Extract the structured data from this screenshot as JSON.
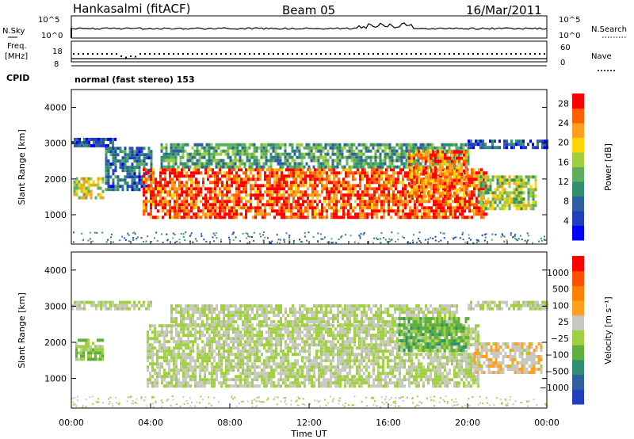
{
  "header": {
    "station": "Hankasalmi (fitACF)",
    "beam": "Beam 05",
    "date": "16/Mar/2011"
  },
  "status_panels": {
    "nsky_label": "N.Sky",
    "nsky_ticks": [
      "10^5",
      "10^0"
    ],
    "nsearch_label": "N.Search",
    "nsearch_ticks": [
      "10^5",
      "10^0"
    ],
    "freq_label_line1": "Freq.",
    "freq_label_line2": "[MHz]",
    "freq_ticks": [
      "18",
      "8"
    ],
    "nave_label": "Nave",
    "nave_ticks": [
      "60",
      "0"
    ],
    "cpid_label": "CPID",
    "cpid_text": "normal (fast stereo) 153"
  },
  "chart_data": [
    {
      "type": "heatmap",
      "name": "power",
      "title": "",
      "xlabel": "",
      "ylabel": "Slant Range [km]",
      "x_ticks": [
        "00:00",
        "04:00",
        "08:00",
        "12:00",
        "16:00",
        "20:00",
        "00:00"
      ],
      "x_range_hours": [
        0,
        24
      ],
      "y_ticks": [
        1000,
        2000,
        3000,
        4000
      ],
      "y_range_km": [
        180,
        4500
      ],
      "colorbar": {
        "label": "Power [dB]",
        "ticks": [
          "4",
          "8",
          "12",
          "16",
          "20",
          "24",
          "28"
        ],
        "range": [
          0,
          30
        ],
        "colors": [
          "#0000ff",
          "#1f3fbf",
          "#2e5f9f",
          "#2f8f6f",
          "#5fae5f",
          "#9fcf3f",
          "#ffd700",
          "#ff9f1f",
          "#ff5f00",
          "#ff0000"
        ]
      },
      "regions": [
        {
          "t0": 0.0,
          "t1": 2.2,
          "r_low": 2900,
          "r_high": 3150,
          "power": 6
        },
        {
          "t0": 0.1,
          "t1": 1.6,
          "r_low": 1500,
          "r_high": 2050,
          "power": 18
        },
        {
          "t0": 1.7,
          "t1": 4.0,
          "r_low": 1700,
          "r_high": 2900,
          "power": 8
        },
        {
          "t0": 3.6,
          "t1": 21.0,
          "r_low": 900,
          "r_high": 2300,
          "power": 26
        },
        {
          "t0": 4.5,
          "t1": 20.0,
          "r_low": 2300,
          "r_high": 3000,
          "power": 12
        },
        {
          "t0": 17.0,
          "t1": 20.0,
          "r_low": 1500,
          "r_high": 2800,
          "power": 24
        },
        {
          "t0": 20.5,
          "t1": 23.5,
          "r_low": 1200,
          "r_high": 2100,
          "power": 16
        },
        {
          "t0": 20.0,
          "t1": 24.0,
          "r_low": 2900,
          "r_high": 3100,
          "power": 6
        }
      ]
    },
    {
      "type": "heatmap",
      "name": "velocity",
      "title": "",
      "xlabel": "Time UT",
      "ylabel": "Slant Range [km]",
      "x_ticks": [
        "00:00",
        "04:00",
        "08:00",
        "12:00",
        "16:00",
        "20:00",
        "00:00"
      ],
      "x_range_hours": [
        0,
        24
      ],
      "y_ticks": [
        1000,
        2000,
        3000,
        4000
      ],
      "y_range_km": [
        180,
        4500
      ],
      "colorbar": {
        "label": "Velocity [m s⁻¹]",
        "ticks": [
          "1000",
          "500",
          "100",
          "25",
          "−25",
          "−100",
          "−500",
          "−1000"
        ],
        "range": [
          -1000,
          1000
        ],
        "colors": [
          "#1f3fbf",
          "#2e5f9f",
          "#2f8f6f",
          "#5faf3f",
          "#9fd03f",
          "#c8c8c0",
          "#ffa01f",
          "#ff7f00",
          "#ff4f00",
          "#ff0000"
        ]
      },
      "regions": [
        {
          "t0": 0.0,
          "t1": 4.0,
          "r_low": 2900,
          "r_high": 3150,
          "velocity": 0
        },
        {
          "t0": 0.2,
          "t1": 1.6,
          "r_low": 1500,
          "r_high": 2100,
          "velocity": -150
        },
        {
          "t0": 3.8,
          "t1": 20.5,
          "r_low": 800,
          "r_high": 2500,
          "velocity": 0
        },
        {
          "t0": 5.0,
          "t1": 19.5,
          "r_low": 2500,
          "r_high": 3050,
          "velocity": 0
        },
        {
          "t0": 16.5,
          "t1": 20.0,
          "r_low": 1800,
          "r_high": 2700,
          "velocity": -300
        },
        {
          "t0": 20.3,
          "t1": 23.7,
          "r_low": 1200,
          "r_high": 2000,
          "velocity": 150
        },
        {
          "t0": 20.0,
          "t1": 24.0,
          "r_low": 2900,
          "r_high": 3150,
          "velocity": 0
        }
      ]
    }
  ]
}
